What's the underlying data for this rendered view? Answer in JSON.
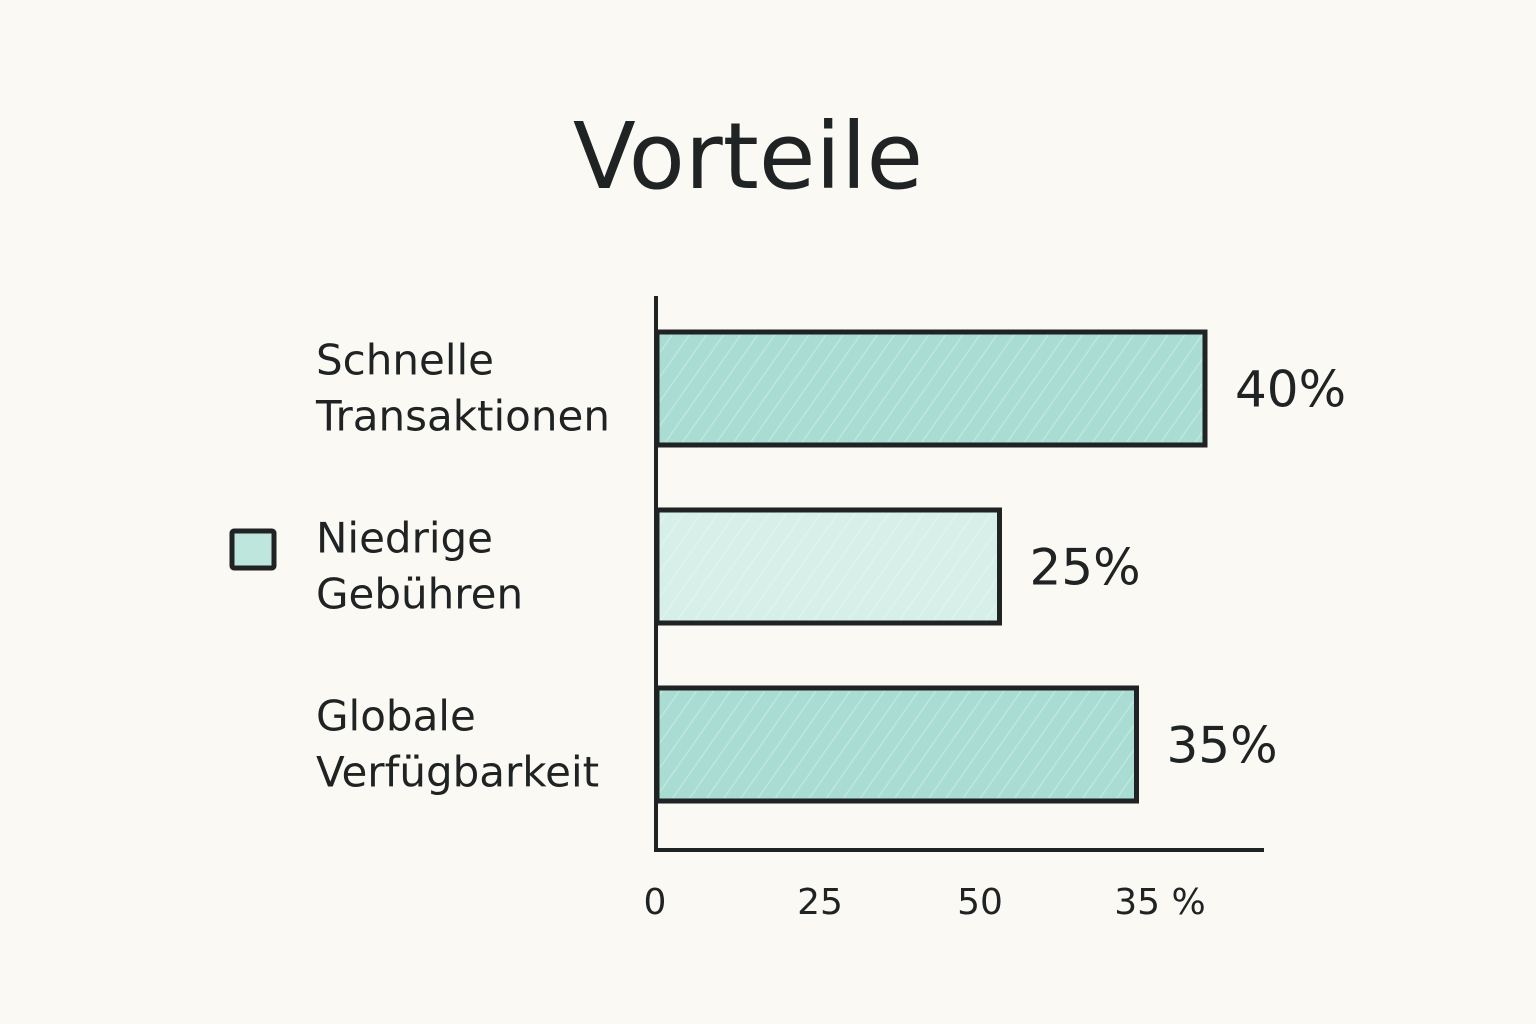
{
  "chart_data": {
    "type": "bar",
    "orientation": "horizontal",
    "title": "Vorteile",
    "categories": [
      [
        "Schnelle",
        "Transaktionen"
      ],
      [
        "Niedrige",
        "Gebühren"
      ],
      [
        "Globale",
        "Verfügbarkeit"
      ]
    ],
    "values": [
      40,
      25,
      35
    ],
    "value_labels": [
      "40%",
      "25%",
      "35%"
    ],
    "x_ticks": [
      "0",
      "25",
      "50",
      "35 %"
    ],
    "legend_marker_category_index": 1,
    "colors": {
      "bar_strong": "#a9ddd3",
      "bar_light": "#d6efe9",
      "stroke": "#1f2323",
      "background": "#fbf9f4"
    },
    "bar_color_index": [
      0,
      1,
      0
    ],
    "grid": false
  }
}
